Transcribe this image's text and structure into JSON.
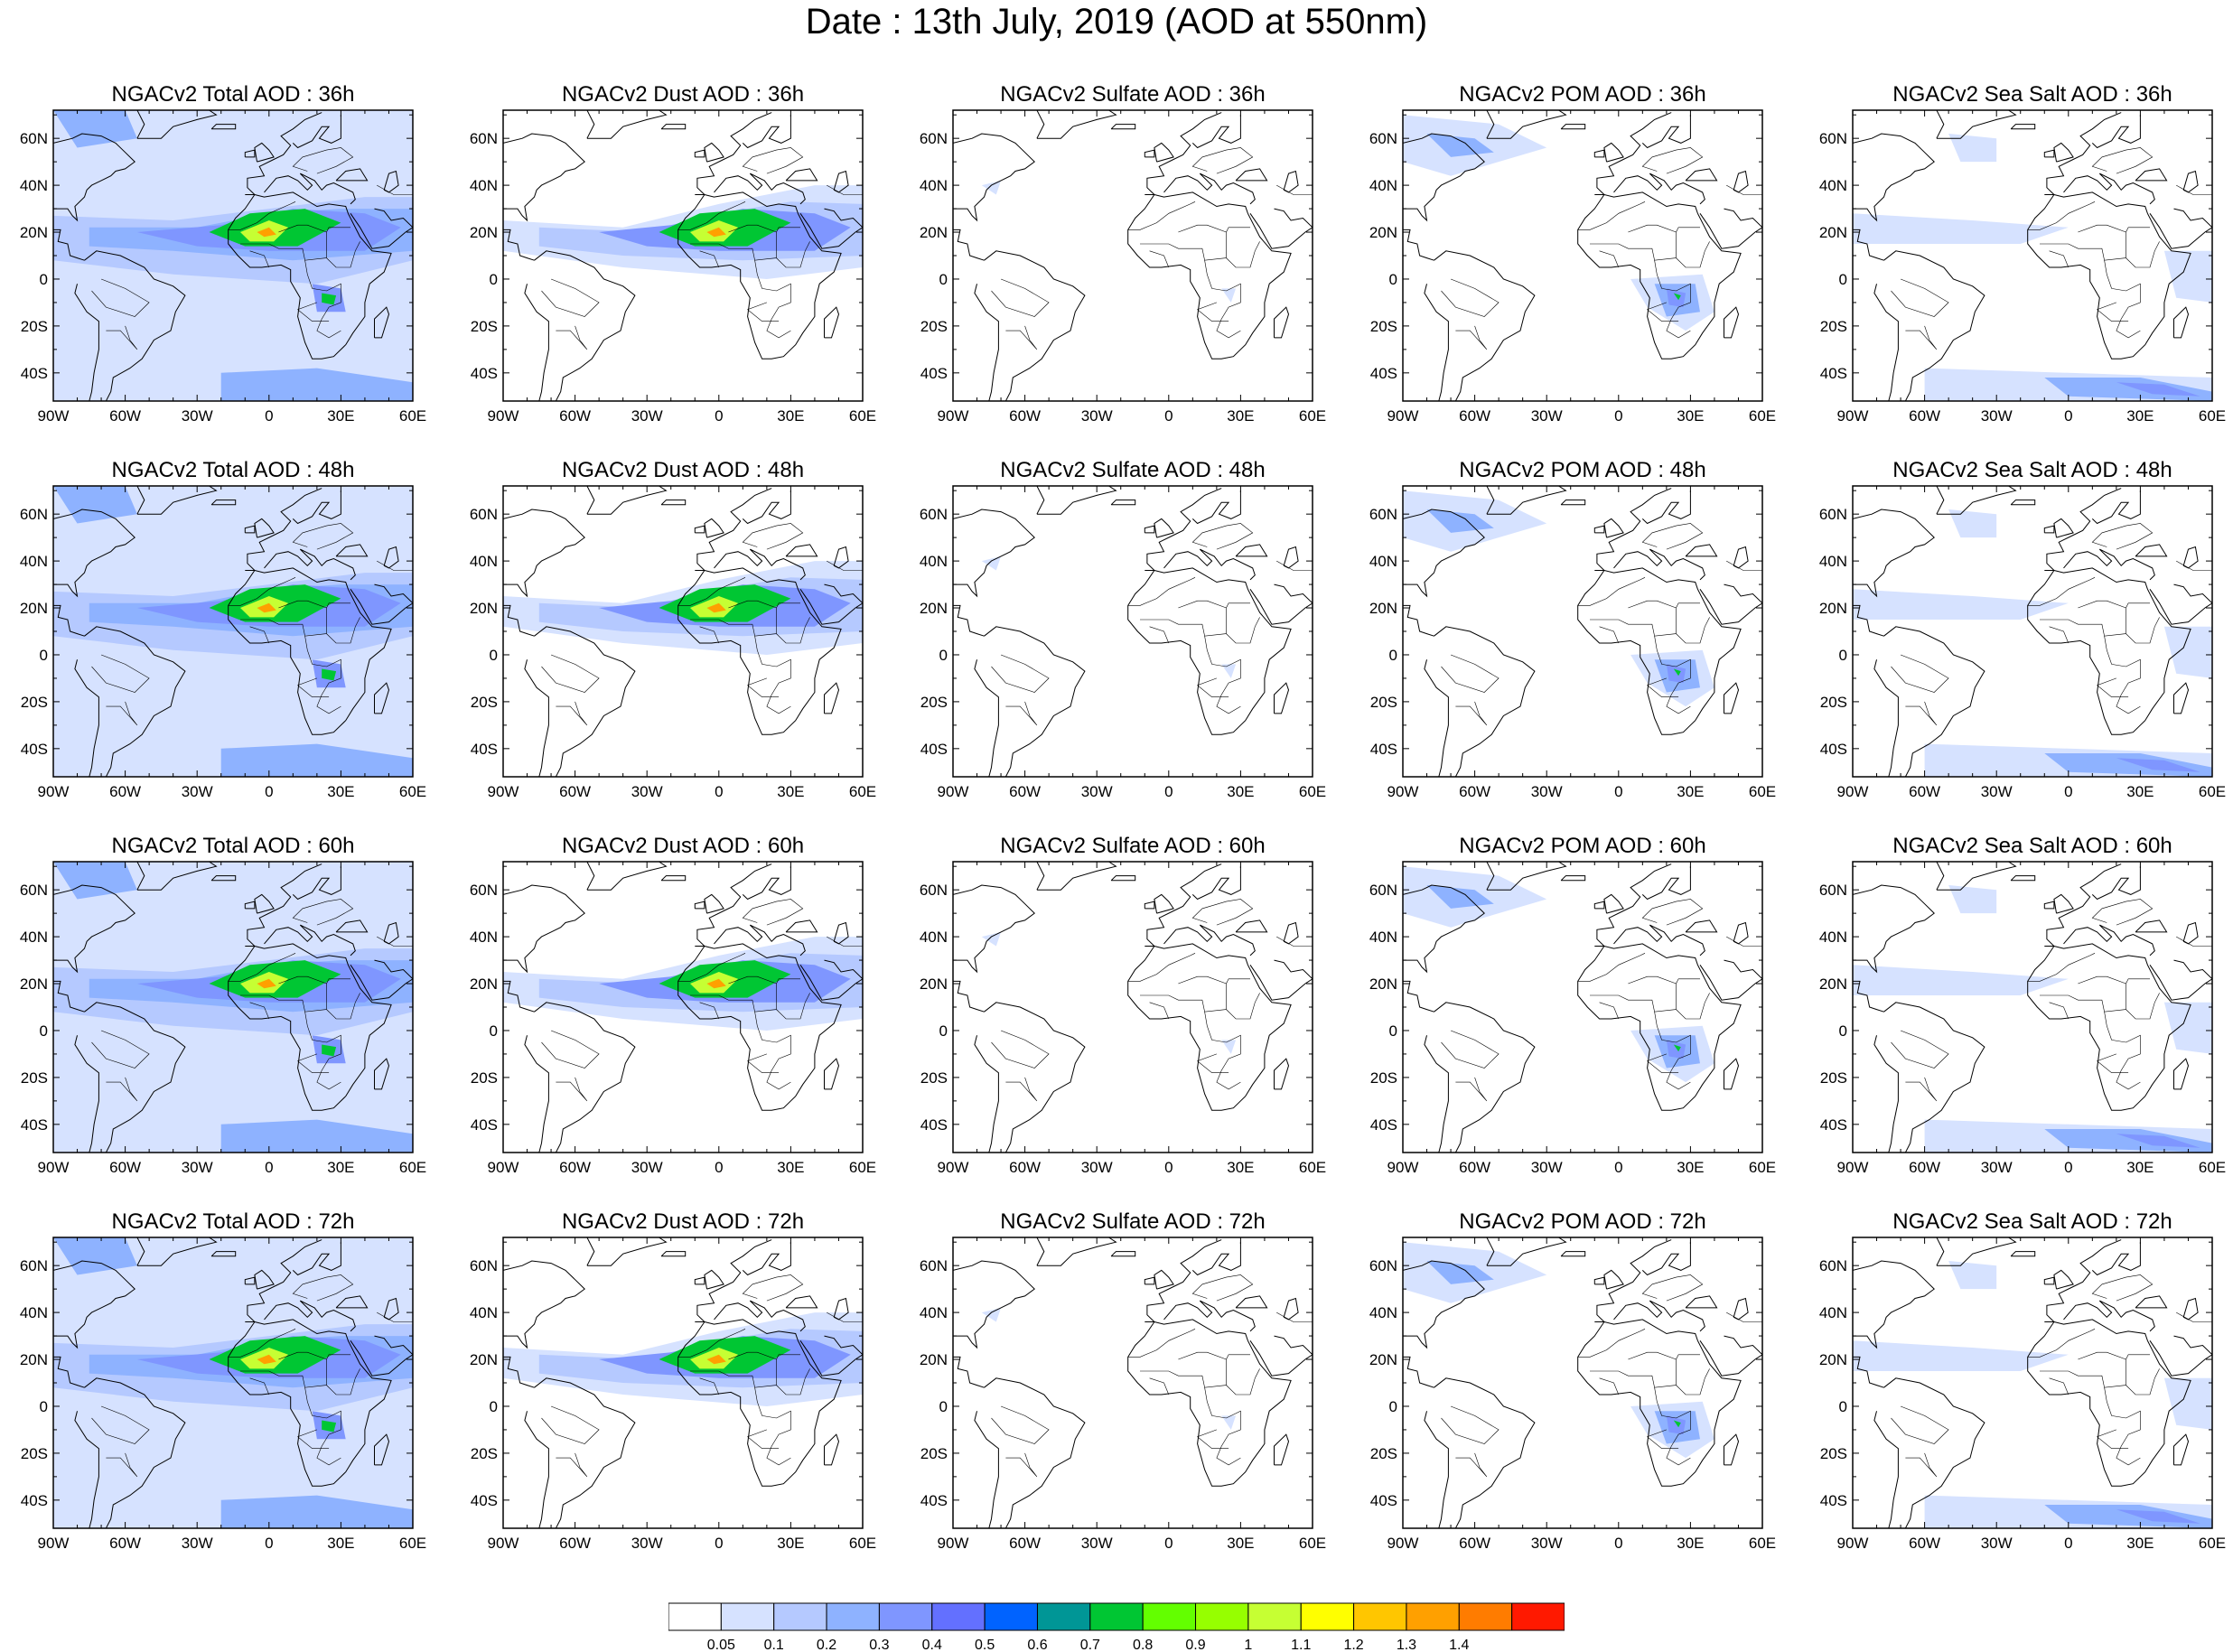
{
  "page_title": "Date : 13th July, 2019 (AOD at 550nm)",
  "panels": [
    [
      "NGACv2 Total AOD : 36h",
      "NGACv2 Dust AOD : 36h",
      "NGACv2 Sulfate AOD : 36h",
      "NGACv2 POM AOD : 36h",
      "NGACv2 Sea Salt AOD : 36h"
    ],
    [
      "NGACv2 Total AOD : 48h",
      "NGACv2 Dust AOD : 48h",
      "NGACv2 Sulfate AOD : 48h",
      "NGACv2 POM AOD : 48h",
      "NGACv2 Sea Salt AOD : 48h"
    ],
    [
      "NGACv2 Total AOD : 60h",
      "NGACv2 Dust AOD : 60h",
      "NGACv2 Sulfate AOD : 60h",
      "NGACv2 POM AOD : 60h",
      "NGACv2 Sea Salt AOD : 60h"
    ],
    [
      "NGACv2 Total AOD : 72h",
      "NGACv2 Dust AOD : 72h",
      "NGACv2 Sulfate AOD : 72h",
      "NGACv2 POM AOD : 72h",
      "NGACv2 Sea Salt  AOD : 72h"
    ]
  ],
  "lon_ticks": [
    "90W",
    "60W",
    "30W",
    "0",
    "30E",
    "60E"
  ],
  "lat_ticks": [
    "60N",
    "40N",
    "20N",
    "0",
    "20S",
    "40S"
  ],
  "colorbar": {
    "labels": [
      "0.05",
      "0.1",
      "0.2",
      "0.3",
      "0.4",
      "0.5",
      "0.6",
      "0.7",
      "0.8",
      "0.9",
      "1",
      "1.1",
      "1.2",
      "1.3",
      "1.4"
    ],
    "colors": [
      "#ffffff",
      "#d6e2ff",
      "#b5c9ff",
      "#8eb2ff",
      "#7f96ff",
      "#6370ff",
      "#0063ff",
      "#009696",
      "#00c633",
      "#63ff00",
      "#96ff00",
      "#c6ff33",
      "#ffff00",
      "#ffc600",
      "#ffa000",
      "#ff7c00",
      "#ff1900"
    ]
  }
}
